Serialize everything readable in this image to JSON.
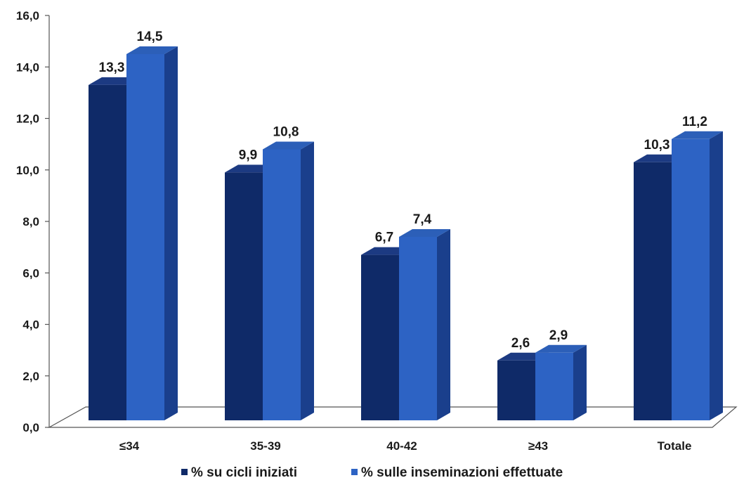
{
  "chart_data": {
    "type": "bar",
    "categories": [
      "≤34",
      "35-39",
      "40-42",
      "≥43",
      "Totale"
    ],
    "series": [
      {
        "name": "% su cicli iniziati",
        "values": [
          13.3,
          9.9,
          6.7,
          2.6,
          10.3
        ],
        "labels": [
          "13,3",
          "9,9",
          "6,7",
          "2,6",
          "10,3"
        ]
      },
      {
        "name": "% sulle inseminazioni effettuate",
        "values": [
          14.5,
          10.8,
          7.4,
          2.9,
          11.2
        ],
        "labels": [
          "14,5",
          "10,8",
          "7,4",
          "2,9",
          "11,2"
        ]
      }
    ],
    "yticks": [
      "0,0",
      "2,0",
      "4,0",
      "6,0",
      "8,0",
      "10,0",
      "12,0",
      "14,0",
      "16,0"
    ],
    "ylim": [
      0,
      16
    ],
    "grid": false,
    "legend_position": "bottom",
    "style": "3d",
    "colors": {
      "series1_front": "#0f2a68",
      "series1_side": "#0a1d4c",
      "series1_top": "#1c3a82",
      "series2_front": "#2d63c4",
      "series2_side": "#1a3f8c",
      "series2_top": "#2c5fb8",
      "axis": "#555555"
    }
  }
}
